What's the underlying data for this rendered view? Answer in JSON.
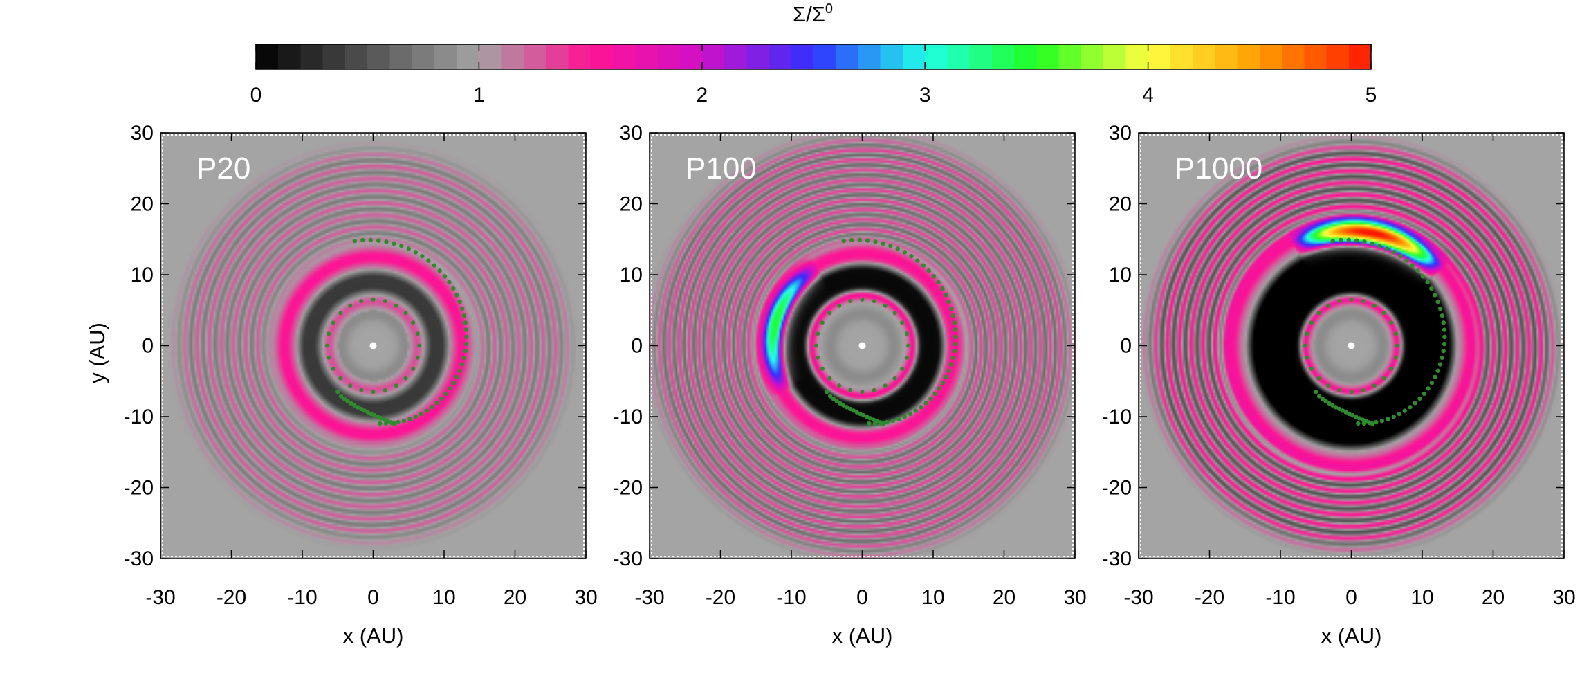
{
  "chart_data": {
    "type": "heatmap",
    "colorbar": {
      "title": "Σ/Σ",
      "title_superscript": "0",
      "range": [
        0,
        5
      ],
      "ticks": [
        "0",
        "1",
        "2",
        "3",
        "4",
        "5"
      ],
      "stops": [
        {
          "v": 0.0,
          "c": "#000000"
        },
        {
          "v": 1.0,
          "c": "#a4a4a4"
        },
        {
          "v": 1.5,
          "c": "#ff1493"
        },
        {
          "v": 2.0,
          "c": "#d010c8"
        },
        {
          "v": 2.5,
          "c": "#3030ff"
        },
        {
          "v": 3.0,
          "c": "#20ffe8"
        },
        {
          "v": 3.5,
          "c": "#20ff20"
        },
        {
          "v": 4.0,
          "c": "#ffff40"
        },
        {
          "v": 4.5,
          "c": "#ff9c00"
        },
        {
          "v": 5.0,
          "c": "#ff1800"
        }
      ]
    },
    "panels": [
      {
        "label": "P20",
        "gap": {
          "r_in": 7,
          "r_out": 11,
          "depth": 0.35
        },
        "outer_rim": {
          "r": 12.5,
          "peak": 1.55
        },
        "inner_rim": {
          "r": 6.2,
          "peak": 1.3
        },
        "arc": null,
        "waves": {
          "r0": 15,
          "r1": 27,
          "n": 7,
          "amp": 0.25
        }
      },
      {
        "label": "P100",
        "gap": {
          "r_in": 7,
          "r_out": 12,
          "depth": 0.05
        },
        "outer_rim": {
          "r": 13,
          "peak": 1.55
        },
        "inner_rim": {
          "r": 7.3,
          "peak": 1.7
        },
        "arc": {
          "r": 12.5,
          "angle_from": 120,
          "angle_to": 210,
          "peak": 3.0
        },
        "waves": {
          "r0": 15,
          "r1": 29,
          "n": 10,
          "amp": 0.35
        }
      },
      {
        "label": "P1000",
        "gap": {
          "r_in": 6.5,
          "r_out": 15,
          "depth": 0.0
        },
        "outer_rim": {
          "r": 17,
          "peak": 1.6
        },
        "inner_rim": {
          "r": 6.6,
          "peak": 1.6
        },
        "arc": {
          "r": 16,
          "angle_from": 40,
          "angle_to": 120,
          "peak": 4.7
        },
        "waves": {
          "r0": 18,
          "r1": 28,
          "n": 6,
          "amp": 0.5
        }
      }
    ],
    "x_axis": {
      "label": "x (AU)",
      "range": [
        -30,
        30
      ],
      "ticks": [
        "-30",
        "-20",
        "-10",
        "0",
        "10",
        "20",
        "30"
      ]
    },
    "y_axis": {
      "label": "y (AU)",
      "range": [
        -30,
        30
      ],
      "ticks": [
        "30",
        "20",
        "10",
        "0",
        "-10",
        "-20",
        "-30"
      ]
    },
    "planet_track": {
      "marker_color": "#2e8b2e",
      "outer_spiral": {
        "r_start": 15,
        "r_end": 11,
        "angle_start": 100,
        "angle_end": -85
      },
      "inner_circle": {
        "r": 6.5
      },
      "star_color": "#ffffff"
    }
  }
}
